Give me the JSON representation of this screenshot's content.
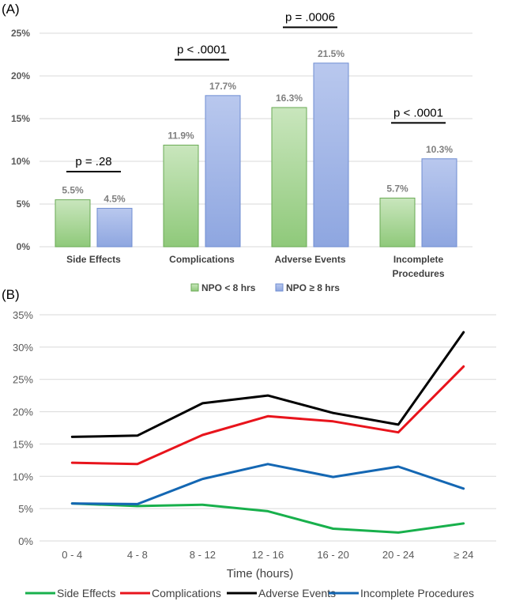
{
  "chart_data": [
    {
      "panel": "(A)",
      "type": "bar",
      "categories": [
        [
          "Side Effects"
        ],
        [
          "Complications"
        ],
        [
          "Adverse Events"
        ],
        [
          "Incomplete",
          "Procedures"
        ]
      ],
      "series": [
        {
          "name": "NPO < 8 hrs",
          "values": [
            5.5,
            11.9,
            16.3,
            5.7
          ],
          "labels": [
            "5.5%",
            "11.9%",
            "16.3%",
            "5.7%"
          ],
          "color": "#8fc97a"
        },
        {
          "name": "NPO ≥ 8 hrs",
          "values": [
            4.5,
            17.7,
            21.5,
            10.3
          ],
          "labels": [
            "4.5%",
            "17.7%",
            "21.5%",
            "10.3%"
          ],
          "color": "#8ea6e0"
        }
      ],
      "annotations": [
        "p = .28",
        "p < .0001",
        "p = .0006",
        "p < .0001"
      ],
      "annotation_levels": [
        8.8,
        21.9,
        25.7,
        14.5
      ],
      "ylim": [
        0,
        25
      ],
      "yticks": [
        0,
        5,
        10,
        15,
        20,
        25
      ],
      "ytick_labels": [
        "0%",
        "5%",
        "10%",
        "15%",
        "20%",
        "25%"
      ],
      "grid": true,
      "legend": "bottom"
    },
    {
      "panel": "(B)",
      "type": "line",
      "categories": [
        "0 - 4",
        "4 - 8",
        "8 - 12",
        "12 - 16",
        "16 - 20",
        "20 - 24",
        "≥ 24"
      ],
      "xlabel": "Time (hours)",
      "series": [
        {
          "name": "Side Effects",
          "values": [
            5.8,
            5.4,
            5.6,
            4.6,
            1.9,
            1.3,
            2.7
          ],
          "color": "#18b04c"
        },
        {
          "name": "Complications",
          "values": [
            12.1,
            11.9,
            16.4,
            19.3,
            18.5,
            16.8,
            27.0
          ],
          "color": "#e8141c"
        },
        {
          "name": "Adverse Events",
          "values": [
            16.1,
            16.3,
            21.3,
            22.5,
            19.8,
            18.0,
            32.3
          ],
          "color": "#000000"
        },
        {
          "name": "Incomplete Procedures",
          "values": [
            5.8,
            5.7,
            9.6,
            11.9,
            9.9,
            11.5,
            8.1
          ],
          "color": "#1467b3"
        }
      ],
      "ylim": [
        0,
        35
      ],
      "yticks": [
        0,
        5,
        10,
        15,
        20,
        25,
        30,
        35
      ],
      "ytick_labels": [
        "0%",
        "5%",
        "10%",
        "15%",
        "20%",
        "25%",
        "30%",
        "35%"
      ],
      "grid": true,
      "legend": "bottom"
    }
  ]
}
